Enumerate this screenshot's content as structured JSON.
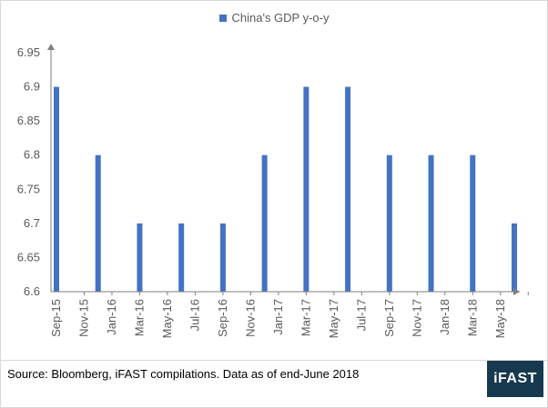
{
  "legend": {
    "label": "China's GDP y-o-y",
    "color": "#4472C4"
  },
  "source": "Source: Bloomberg, iFAST compilations. Data as of end-June 2018",
  "logo": "iFAST",
  "chart_data": {
    "type": "bar",
    "title": "",
    "xlabel": "",
    "ylabel": "",
    "ylim": [
      6.6,
      6.95
    ],
    "yticks": [
      6.6,
      6.65,
      6.7,
      6.75,
      6.8,
      6.85,
      6.9,
      6.95
    ],
    "ytick_labels": [
      "6.6",
      "6.65",
      "6.7",
      "6.75",
      "6.8",
      "6.85",
      "6.9",
      "6.95"
    ],
    "categories": [
      "Sep-15",
      "Oct-15",
      "Nov-15",
      "Dec-15",
      "Jan-16",
      "Feb-16",
      "Mar-16",
      "Apr-16",
      "May-16",
      "Jun-16",
      "Jul-16",
      "Aug-16",
      "Sep-16",
      "Oct-16",
      "Nov-16",
      "Dec-16",
      "Jan-17",
      "Feb-17",
      "Mar-17",
      "Apr-17",
      "May-17",
      "Jun-17",
      "Jul-17",
      "Aug-17",
      "Sep-17",
      "Oct-17",
      "Nov-17",
      "Dec-17",
      "Jan-18",
      "Feb-18",
      "Mar-18",
      "Apr-18",
      "May-18",
      "Jun-18"
    ],
    "xtick_labels": [
      "Sep-15",
      "Nov-15",
      "Jan-16",
      "Mar-16",
      "May-16",
      "Jul-16",
      "Sep-16",
      "Nov-16",
      "Jan-17",
      "Mar-17",
      "May-17",
      "Jul-17",
      "Sep-17",
      "Nov-17",
      "Jan-18",
      "Mar-18",
      "May-18"
    ],
    "series": [
      {
        "name": "China's GDP y-o-y",
        "color": "#4472C4",
        "values": [
          6.9,
          null,
          null,
          6.8,
          null,
          null,
          6.7,
          null,
          null,
          6.7,
          null,
          null,
          6.7,
          null,
          null,
          6.8,
          null,
          null,
          6.9,
          null,
          null,
          6.9,
          null,
          null,
          6.8,
          null,
          null,
          6.8,
          null,
          null,
          6.8,
          null,
          null,
          6.7
        ]
      }
    ],
    "grid": false,
    "legend_position": "top"
  }
}
